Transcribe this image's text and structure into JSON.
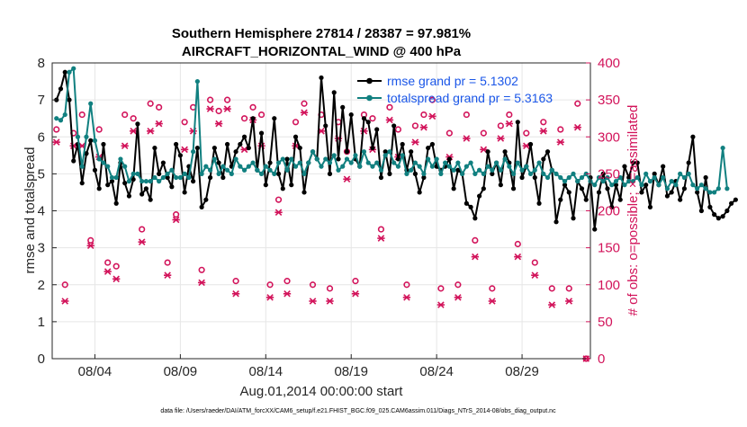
{
  "chart_data": {
    "type": "line",
    "title": "Southern Hemisphere 27814 / 28387 = 97.981%",
    "subtitle": "AIRCRAFT_HORIZONTAL_WIND @ 400 hPa",
    "xlabel": "Aug.01,2014 00:00:00 start",
    "ylabel_left": "rmse and totalspread",
    "ylabel_right": "# of obs: o=possible; ×=assimilated",
    "footer": "data file: /Users/raeder/DAI/ATM_forcXX/CAM6_setup/f.e21.FHIST_BGC.f09_025.CAM6assim.011/Diags_NTrS_2014-08/obs_diag_output.nc",
    "xlim": [
      1.5,
      33
    ],
    "ylim_left": [
      0,
      8
    ],
    "ylim_right": [
      0,
      400
    ],
    "x_ticks": [
      4,
      9,
      14,
      19,
      24,
      29
    ],
    "x_tick_labels": [
      "08/04",
      "08/09",
      "08/14",
      "08/19",
      "08/24",
      "08/29"
    ],
    "y_ticks_left": [
      0,
      1,
      2,
      3,
      4,
      5,
      6,
      7,
      8
    ],
    "y_ticks_right": [
      0,
      50,
      100,
      150,
      200,
      250,
      300,
      350,
      400
    ],
    "legend_position": "top-right",
    "colors": {
      "rmse": "#000000",
      "spread": "#118080",
      "obs": "#d2135a",
      "legend_text": "#1a56e8",
      "grid": "#e6e6e6"
    },
    "series": [
      {
        "name": "rmse grand pr = 5.1302",
        "axis": "left",
        "x_start": 1.75,
        "x_step": 0.25,
        "values": [
          7.0,
          7.3,
          7.75,
          7.0,
          5.35,
          5.8,
          4.75,
          5.55,
          5.9,
          5.1,
          4.6,
          5.8,
          4.7,
          4.8,
          4.2,
          5.3,
          4.75,
          4.4,
          4.85,
          6.35,
          4.45,
          4.6,
          4.3,
          5.7,
          5.0,
          5.3,
          4.9,
          4.65,
          5.8,
          5.5,
          4.5,
          5.2,
          4.8,
          5.7,
          4.1,
          4.3,
          4.9,
          5.7,
          5.3,
          4.9,
          5.8,
          5.2,
          5.6,
          5.8,
          6.0,
          5.7,
          6.5,
          5.1,
          6.1,
          4.7,
          5.3,
          6.5,
          5.0,
          4.6,
          5.4,
          4.7,
          6.0,
          5.7,
          4.5,
          5.3,
          5.6,
          5.4,
          7.6,
          6.3,
          5.0,
          7.2,
          5.4,
          6.8,
          5.6,
          6.6,
          5.4,
          5.2,
          6.5,
          6.4,
          5.7,
          6.2,
          4.9,
          5.6,
          5.0,
          6.3,
          5.4,
          5.8,
          5.1,
          5.6,
          5.0,
          4.5,
          4.9,
          5.7,
          5.8,
          5.2,
          5.1,
          5.2,
          5.4,
          4.6,
          5.1,
          5.0,
          4.2,
          4.1,
          3.8,
          4.4,
          4.6,
          5.6,
          5.0,
          5.3,
          4.7,
          5.6,
          5.3,
          4.6,
          6.4,
          4.9,
          5.2,
          5.8,
          4.9,
          4.2,
          5.4,
          5.6,
          5.1,
          3.7,
          4.3,
          4.7,
          4.5,
          3.8,
          4.8,
          4.6,
          4.3,
          4.9,
          3.5,
          4.5,
          5.0,
          4.6,
          4.1,
          4.7,
          4.3,
          5.2,
          4.9,
          5.3,
          5.3,
          4.5,
          4.7,
          4.1,
          5.0,
          4.7,
          5.2,
          4.4,
          4.5,
          4.8,
          4.3,
          4.6,
          5.3,
          6.0,
          4.5,
          4.0,
          4.9,
          4.1,
          3.9,
          3.8,
          3.85,
          4.0,
          4.2,
          4.3
        ]
      },
      {
        "name": "totalspread grand pr = 5.3163",
        "axis": "left",
        "x_start": 1.75,
        "x_step": 0.25,
        "values": [
          6.5,
          6.45,
          6.6,
          7.75,
          7.85,
          6.0,
          5.2,
          6.0,
          6.9,
          5.9,
          5.4,
          5.3,
          5.2,
          4.9,
          4.9,
          5.4,
          5.2,
          4.8,
          5.0,
          5.0,
          4.8,
          4.8,
          4.8,
          4.9,
          4.8,
          4.9,
          5.0,
          5.1,
          4.9,
          4.9,
          5.0,
          4.9,
          5.6,
          7.5,
          5.0,
          5.2,
          5.1,
          5.4,
          5.0,
          5.2,
          5.1,
          5.0,
          5.4,
          5.2,
          5.1,
          5.2,
          5.3,
          5.1,
          5.0,
          5.2,
          5.1,
          5.0,
          5.3,
          5.4,
          5.1,
          5.4,
          5.2,
          5.3,
          5.0,
          5.3,
          5.6,
          5.4,
          5.2,
          5.4,
          5.3,
          5.5,
          5.1,
          5.2,
          5.4,
          5.3,
          5.5,
          5.2,
          5.6,
          5.3,
          5.2,
          5.3,
          5.1,
          5.5,
          5.6,
          5.3,
          5.2,
          5.5,
          5.0,
          5.1,
          5.3,
          5.2,
          5.0,
          5.4,
          5.2,
          5.4,
          5.0,
          5.3,
          5.2,
          5.1,
          5.3,
          5.0,
          5.2,
          5.3,
          5.0,
          5.1,
          5.0,
          5.2,
          5.1,
          5.3,
          5.1,
          5.4,
          5.2,
          5.0,
          5.3,
          5.1,
          5.2,
          5.0,
          5.1,
          5.3,
          5.0,
          4.9,
          5.1,
          5.0,
          4.9,
          4.8,
          4.9,
          5.0,
          4.8,
          4.9,
          5.0,
          4.8,
          4.7,
          4.9,
          4.8,
          4.9,
          4.7,
          4.8,
          4.9,
          4.7,
          4.8,
          4.8,
          4.9,
          4.7,
          5.0,
          4.8,
          4.9,
          4.7,
          4.9,
          4.6,
          4.8,
          4.7,
          5.0,
          4.9,
          5.0,
          4.7,
          4.6,
          4.7,
          4.6,
          4.5,
          4.5,
          4.6,
          5.7,
          4.6
        ]
      },
      {
        "name": "# of obs possible",
        "axis": "right",
        "marker": "o",
        "x": [
          1.75,
          2.25,
          2.75,
          3.25,
          3.75,
          4.25,
          4.75,
          5.25,
          5.75,
          6.25,
          6.75,
          7.25,
          7.75,
          8.25,
          8.75,
          9.25,
          9.75,
          10.25,
          10.75,
          11.25,
          11.75,
          12.25,
          12.75,
          13.25,
          13.75,
          14.25,
          14.75,
          15.25,
          15.75,
          16.25,
          16.75,
          17.25,
          17.75,
          18.25,
          18.75,
          19.25,
          19.75,
          20.25,
          20.75,
          21.25,
          21.75,
          22.25,
          22.75,
          23.25,
          23.75,
          24.25,
          24.75,
          25.25,
          25.75,
          26.25,
          26.75,
          27.25,
          27.75,
          28.25,
          28.75,
          29.25,
          29.75,
          30.25,
          30.75,
          31.25,
          31.75,
          32.25,
          32.75
        ],
        "values": [
          310,
          100,
          305,
          330,
          160,
          310,
          130,
          125,
          330,
          325,
          175,
          345,
          340,
          130,
          195,
          320,
          340,
          120,
          350,
          335,
          350,
          105,
          325,
          340,
          330,
          100,
          215,
          105,
          320,
          345,
          100,
          330,
          95,
          320,
          280,
          105,
          330,
          325,
          175,
          340,
          310,
          100,
          315,
          330,
          350,
          95,
          305,
          100,
          330,
          160,
          305,
          95,
          315,
          330,
          155,
          305,
          130,
          320,
          95,
          310,
          95,
          345,
          0
        ]
      },
      {
        "name": "# of obs assimilated",
        "axis": "right",
        "marker": "x",
        "x": [
          1.75,
          2.25,
          2.75,
          3.25,
          3.75,
          4.25,
          4.75,
          5.25,
          5.75,
          6.25,
          6.75,
          7.25,
          7.75,
          8.25,
          8.75,
          9.25,
          9.75,
          10.25,
          10.75,
          11.25,
          11.75,
          12.25,
          12.75,
          13.25,
          13.75,
          14.25,
          14.75,
          15.25,
          15.75,
          16.25,
          16.75,
          17.25,
          17.75,
          18.25,
          18.75,
          19.25,
          19.75,
          20.25,
          20.75,
          21.25,
          21.75,
          22.25,
          22.75,
          23.25,
          23.75,
          24.25,
          24.75,
          25.25,
          25.75,
          26.25,
          26.75,
          27.25,
          27.75,
          28.25,
          28.75,
          29.25,
          29.75,
          30.25,
          30.75,
          31.25,
          31.75,
          32.25,
          32.75
        ],
        "values": [
          305,
          90,
          300,
          300,
          165,
          285,
          130,
          120,
          300,
          320,
          170,
          320,
          330,
          125,
          200,
          295,
          320,
          115,
          350,
          330,
          350,
          100,
          295,
          335,
          300,
          95,
          210,
          100,
          300,
          345,
          90,
          320,
          90,
          310,
          255,
          100,
          320,
          295,
          175,
          335,
          285,
          95,
          305,
          325,
          340,
          85,
          285,
          95,
          310,
          150,
          295,
          90,
          310,
          330,
          150,
          300,
          125,
          320,
          85,
          305,
          90,
          325,
          0
        ]
      }
    ]
  }
}
